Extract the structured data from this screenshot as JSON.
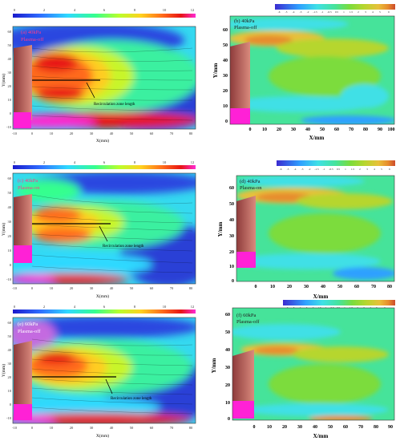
{
  "colors": {
    "jet": [
      "#1a1acc",
      "#2f6dff",
      "#2fd9ff",
      "#35ff8e",
      "#b8ff2c",
      "#ffd21f",
      "#ff6a1a",
      "#e81414",
      "#ff2bd4"
    ],
    "div": [
      "#3b2bd0",
      "#2fa0ff",
      "#3fe0e6",
      "#46e39a",
      "#7bdc3c",
      "#b6d62e",
      "#e8c03a",
      "#e78c2d",
      "#cc4b2c"
    ],
    "plate": "#b45a55",
    "electrode": "#ff21d6",
    "leader": "#000000"
  },
  "panels": {
    "a": {
      "label": "(a) 40kPa",
      "state": "Plasma-off",
      "annotation": "Recirculation zone length",
      "cbar": [
        "0",
        "2",
        "4",
        "6",
        "8",
        "10",
        "12"
      ],
      "yticks": [
        "60",
        "50",
        "40",
        "30",
        "20",
        "10",
        "0",
        "-10"
      ],
      "xticks": [
        "-10",
        "0",
        "10",
        "20",
        "30",
        "40",
        "50",
        "60",
        "70",
        "80"
      ],
      "xlabel": "X(mm)",
      "ylabel": "Y(mm)"
    },
    "b": {
      "label": "(b) 40kPa",
      "state": "Plasma-off",
      "cbar": [
        "-6",
        "-5",
        "-4",
        "-3",
        "-2",
        "-1.5",
        "-1",
        "-0.5",
        "0.5",
        "1",
        "1.5",
        "2",
        "3",
        "4",
        "5",
        "6"
      ],
      "yticks": [
        "60",
        "50",
        "40",
        "30",
        "20",
        "10",
        "0"
      ],
      "xticks": [
        "0",
        "10",
        "20",
        "30",
        "40",
        "50",
        "60",
        "70",
        "80",
        "90",
        "100"
      ],
      "xlabel": "X/mm",
      "ylabel": "Y/mm"
    },
    "c": {
      "label": "(c) 40kPa",
      "state": "Plasma-on",
      "annotation": "Recirculation zone length",
      "cbar": [
        "0",
        "2",
        "4",
        "6",
        "8",
        "10",
        "12"
      ],
      "yticks": [
        "60",
        "50",
        "40",
        "30",
        "20",
        "10",
        "0",
        "-10"
      ],
      "xticks": [
        "-10",
        "0",
        "10",
        "20",
        "30",
        "40",
        "50",
        "60",
        "70",
        "80"
      ],
      "xlabel": "X(mm)",
      "ylabel": "Y(mm)"
    },
    "d": {
      "label": "(d) 40kPa",
      "state": "Plasma-on",
      "cbar": [
        "-6",
        "-5",
        "-4",
        "-3",
        "-2",
        "-1.5",
        "-1",
        "-0.5",
        "0.5",
        "1",
        "1.5",
        "2",
        "3",
        "4",
        "5",
        "6"
      ],
      "yticks": [
        "60",
        "50",
        "40",
        "30",
        "20",
        "10",
        "0"
      ],
      "xticks": [
        "0",
        "10",
        "20",
        "30",
        "40",
        "50",
        "60",
        "70",
        "80"
      ],
      "xlabel": "X/mm",
      "ylabel": "Y/mm"
    },
    "e": {
      "label": "(e) 60kPa",
      "state": "Plasma-off",
      "annotation": "Recirculation zone length",
      "cbar": [
        "0",
        "2",
        "4",
        "6",
        "8",
        "10",
        "12"
      ],
      "yticks": [
        "60",
        "50",
        "40",
        "30",
        "20",
        "10",
        "0",
        "-10"
      ],
      "xticks": [
        "-10",
        "0",
        "10",
        "20",
        "30",
        "40",
        "50",
        "60",
        "70",
        "80"
      ],
      "xlabel": "X(mm)",
      "ylabel": "Y(mm)"
    },
    "f": {
      "label": "(f) 60kPa",
      "state": "Plasma-off",
      "cbar": [
        "-6",
        "-5",
        "-4",
        "-3",
        "-2",
        "-1.5",
        "-1",
        "-0.5",
        "0.5",
        "1",
        "1.5",
        "2",
        "3",
        "4",
        "5",
        "6"
      ],
      "yticks": [
        "60",
        "50",
        "40",
        "30",
        "20",
        "10",
        "0"
      ],
      "xticks": [
        "0",
        "10",
        "20",
        "30",
        "40",
        "50",
        "60",
        "70",
        "80",
        "90"
      ],
      "xlabel": "X/mm",
      "ylabel": "Y/mm"
    }
  }
}
